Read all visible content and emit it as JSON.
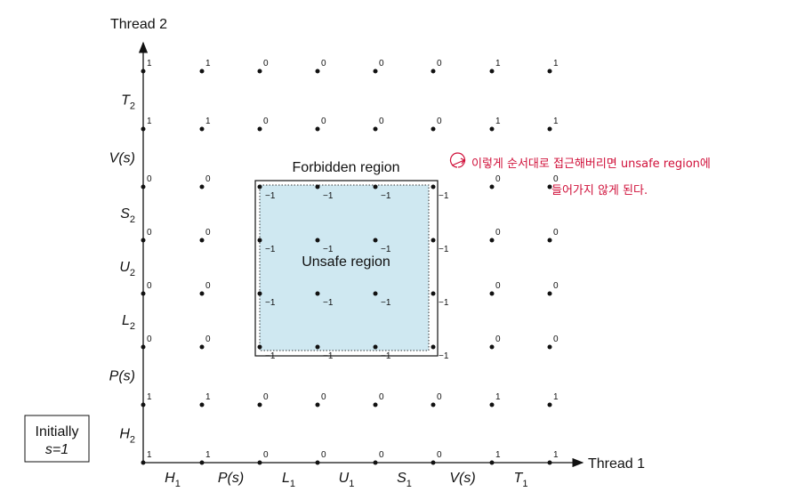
{
  "diagram": {
    "y_axis_title": "Thread 2",
    "x_axis_title": "Thread 1",
    "forbidden_label": "Forbidden region",
    "unsafe_label": "Unsafe region",
    "initial_box": [
      "Initially",
      "s=1"
    ],
    "x_labels": [
      {
        "name": "H",
        "sub": "1"
      },
      {
        "name": "P(s)"
      },
      {
        "name": "L",
        "sub": "1"
      },
      {
        "name": "U",
        "sub": "1"
      },
      {
        "name": "S",
        "sub": "1"
      },
      {
        "name": "V(s)"
      },
      {
        "name": "T",
        "sub": "1"
      }
    ],
    "y_labels": [
      {
        "name": "H",
        "sub": "2"
      },
      {
        "name": "P(s)"
      },
      {
        "name": "L",
        "sub": "2"
      },
      {
        "name": "U",
        "sub": "2"
      },
      {
        "name": "S",
        "sub": "2"
      },
      {
        "name": "V(s)"
      },
      {
        "name": "T",
        "sub": "2"
      }
    ],
    "grid_rows": [
      [
        "1",
        "1",
        "0",
        "0",
        "0",
        "0",
        "1",
        "1"
      ],
      [
        "1",
        "1",
        "0",
        "0",
        "0",
        "0",
        "1",
        "1"
      ],
      [
        "0",
        "0",
        "−1",
        "−1",
        "−1",
        "−1",
        "0",
        "0"
      ],
      [
        "0",
        "0",
        "−1",
        "−1",
        "−1",
        "−1",
        "0",
        "0"
      ],
      [
        "0",
        "0",
        "−1",
        "−1",
        "−1",
        "−1",
        "0",
        "0"
      ],
      [
        "0",
        "0",
        "−1",
        "−1",
        "−1",
        "−1",
        "0",
        "0"
      ],
      [
        "1",
        "1",
        "0",
        "0",
        "0",
        "0",
        "1",
        "1"
      ],
      [
        "1",
        "1",
        "0",
        "0",
        "0",
        "0",
        "1",
        "1"
      ]
    ],
    "annotation": [
      "이렇게 순서대로 접근해버리면 unsafe region에",
      "들어가지 않게 된다."
    ]
  }
}
